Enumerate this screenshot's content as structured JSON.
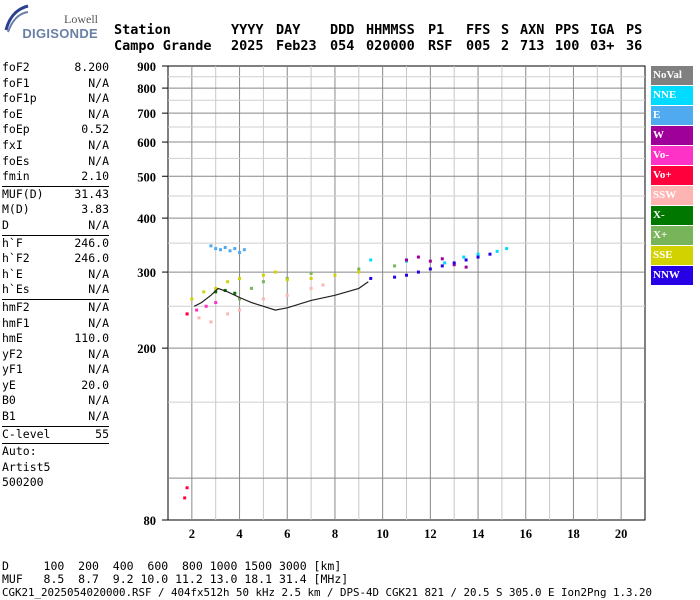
{
  "logo": {
    "line1": "Lowell",
    "line2": "DIGISONDE"
  },
  "header": {
    "row1": [
      "Station",
      "YYYY",
      "DAY",
      "DDD",
      "HHMMSS",
      "P1",
      "FFS",
      "S",
      "AXN",
      "PPS",
      "IGA",
      "PS"
    ],
    "row2": [
      "Campo Grande",
      "2025",
      "Feb23",
      "054",
      "020000",
      "RSF",
      "005",
      "2",
      "713",
      "100",
      "03+",
      "36"
    ]
  },
  "params": [
    {
      "name": "foF2",
      "value": "8.200"
    },
    {
      "name": "foF1",
      "value": "N/A"
    },
    {
      "name": "foF1p",
      "value": "N/A"
    },
    {
      "name": "foE",
      "value": "N/A"
    },
    {
      "name": "foEp",
      "value": "0.52"
    },
    {
      "name": "fxI",
      "value": "N/A"
    },
    {
      "name": "foEs",
      "value": "N/A"
    },
    {
      "name": "fmin",
      "value": "2.10"
    },
    {
      "sep": true
    },
    {
      "name": "MUF(D)",
      "value": "31.43"
    },
    {
      "name": "M(D)",
      "value": "3.83"
    },
    {
      "name": "D",
      "value": "N/A"
    },
    {
      "sep": true
    },
    {
      "name": "h`F",
      "value": "246.0"
    },
    {
      "name": "h`F2",
      "value": "246.0"
    },
    {
      "name": "h`E",
      "value": "N/A"
    },
    {
      "name": "h`Es",
      "value": "N/A"
    },
    {
      "sep": true
    },
    {
      "name": "hmF2",
      "value": "N/A"
    },
    {
      "name": "hmF1",
      "value": "N/A"
    },
    {
      "name": "hmE",
      "value": "110.0"
    },
    {
      "name": "yF2",
      "value": "N/A"
    },
    {
      "name": "yF1",
      "value": "N/A"
    },
    {
      "name": "yE",
      "value": "20.0"
    },
    {
      "name": "B0",
      "value": "N/A"
    },
    {
      "name": "B1",
      "value": "N/A"
    },
    {
      "sep": true
    },
    {
      "name": "C-level",
      "value": "55"
    },
    {
      "sep": true
    },
    {
      "note": "Auto:"
    },
    {
      "note": "Artist5"
    },
    {
      "note": "500200"
    }
  ],
  "legend": [
    {
      "label": "NoVal",
      "color": "#808080"
    },
    {
      "label": "NNE",
      "color": "#00dcff"
    },
    {
      "label": "E",
      "color": "#50aaf0"
    },
    {
      "label": "W",
      "color": "#a0009a"
    },
    {
      "label": "Vo-",
      "color": "#ff32c8"
    },
    {
      "label": "Vo+",
      "color": "#ff003c"
    },
    {
      "label": "SSW",
      "color": "#ffb4b4"
    },
    {
      "label": "X-",
      "color": "#007800"
    },
    {
      "label": "X+",
      "color": "#78b45a"
    },
    {
      "label": "SSE",
      "color": "#d2d200"
    },
    {
      "label": "NNW",
      "color": "#2800e6"
    }
  ],
  "chart_data": {
    "type": "scatter",
    "title": "",
    "xlabel": "",
    "ylabel": "",
    "xlim": [
      1,
      21
    ],
    "ylim": [
      80,
      900
    ],
    "y_scale": "log",
    "x_ticks": [
      2,
      4,
      6,
      8,
      10,
      12,
      14,
      16,
      18,
      20
    ],
    "y_ticks": [
      80,
      200,
      300,
      400,
      500,
      600,
      700,
      800,
      900
    ],
    "grid": true,
    "legend_position": "right",
    "series": [
      {
        "name": "NNE",
        "points": [
          [
            9.5,
            320
          ],
          [
            11.0,
            318
          ],
          [
            12.6,
            315
          ],
          [
            13.4,
            325
          ],
          [
            14.0,
            330
          ],
          [
            14.8,
            335
          ],
          [
            15.2,
            340
          ]
        ]
      },
      {
        "name": "E",
        "points": [
          [
            2.8,
            345
          ],
          [
            3.0,
            340
          ],
          [
            3.2,
            338
          ],
          [
            3.4,
            342
          ],
          [
            3.6,
            336
          ],
          [
            3.8,
            340
          ],
          [
            4.0,
            333
          ],
          [
            4.2,
            338
          ]
        ]
      },
      {
        "name": "W",
        "points": [
          [
            11.0,
            320
          ],
          [
            11.5,
            325
          ],
          [
            12.0,
            318
          ],
          [
            12.5,
            322
          ],
          [
            13.0,
            312
          ],
          [
            13.5,
            308
          ]
        ]
      },
      {
        "name": "Vo-",
        "points": [
          [
            1.8,
            240
          ],
          [
            2.2,
            245
          ],
          [
            2.6,
            250
          ],
          [
            3.0,
            255
          ]
        ]
      },
      {
        "name": "Vo+",
        "points": [
          [
            1.7,
            90
          ],
          [
            1.8,
            95
          ],
          [
            1.8,
            240
          ]
        ]
      },
      {
        "name": "SSW",
        "points": [
          [
            2.3,
            235
          ],
          [
            2.8,
            230
          ],
          [
            3.5,
            240
          ],
          [
            4.0,
            245
          ],
          [
            5.0,
            260
          ],
          [
            6.0,
            265
          ],
          [
            7.0,
            275
          ],
          [
            7.5,
            280
          ]
        ]
      },
      {
        "name": "X-",
        "points": [
          [
            3.0,
            270
          ],
          [
            3.4,
            272
          ],
          [
            3.8,
            268
          ]
        ]
      },
      {
        "name": "X+",
        "points": [
          [
            4.0,
            260
          ],
          [
            4.5,
            275
          ],
          [
            5.0,
            285
          ],
          [
            6.0,
            290
          ],
          [
            7.0,
            298
          ],
          [
            9.0,
            305
          ],
          [
            10.5,
            310
          ]
        ]
      },
      {
        "name": "SSE",
        "points": [
          [
            2.0,
            260
          ],
          [
            2.5,
            270
          ],
          [
            3.0,
            275
          ],
          [
            3.5,
            285
          ],
          [
            4.0,
            290
          ],
          [
            5.0,
            295
          ],
          [
            5.5,
            300
          ],
          [
            6.0,
            288
          ],
          [
            7.0,
            290
          ],
          [
            8.0,
            295
          ],
          [
            9.0,
            300
          ]
        ]
      },
      {
        "name": "NNW",
        "points": [
          [
            9.5,
            290
          ],
          [
            10.5,
            292
          ],
          [
            11.0,
            295
          ],
          [
            11.5,
            300
          ],
          [
            12.0,
            305
          ],
          [
            12.5,
            310
          ],
          [
            13.0,
            315
          ],
          [
            13.5,
            320
          ],
          [
            14.0,
            325
          ],
          [
            14.5,
            330
          ]
        ]
      }
    ],
    "profile": {
      "name": "trace",
      "x": [
        2.1,
        2.4,
        2.8,
        3.1,
        3.5,
        4.0,
        4.5,
        5.0,
        5.5,
        6.0,
        7.0,
        8.0,
        9.0,
        9.4
      ],
      "y": [
        250,
        255,
        265,
        275,
        270,
        262,
        255,
        250,
        245,
        248,
        258,
        265,
        275,
        285
      ]
    }
  },
  "footer": {
    "line1": "D     100  200  400  600  800 1000 1500 3000 [km]",
    "line2": "MUF   8.5  8.7  9.2 10.0 11.2 13.0 18.1 31.4 [MHz]",
    "line3": "CGK21_2025054020000.RSF / 404fx512h 50 kHz 2.5 km / DPS-4D CGK21 821 / 20.5 S 305.0 E Ion2Png 1.3.20"
  }
}
